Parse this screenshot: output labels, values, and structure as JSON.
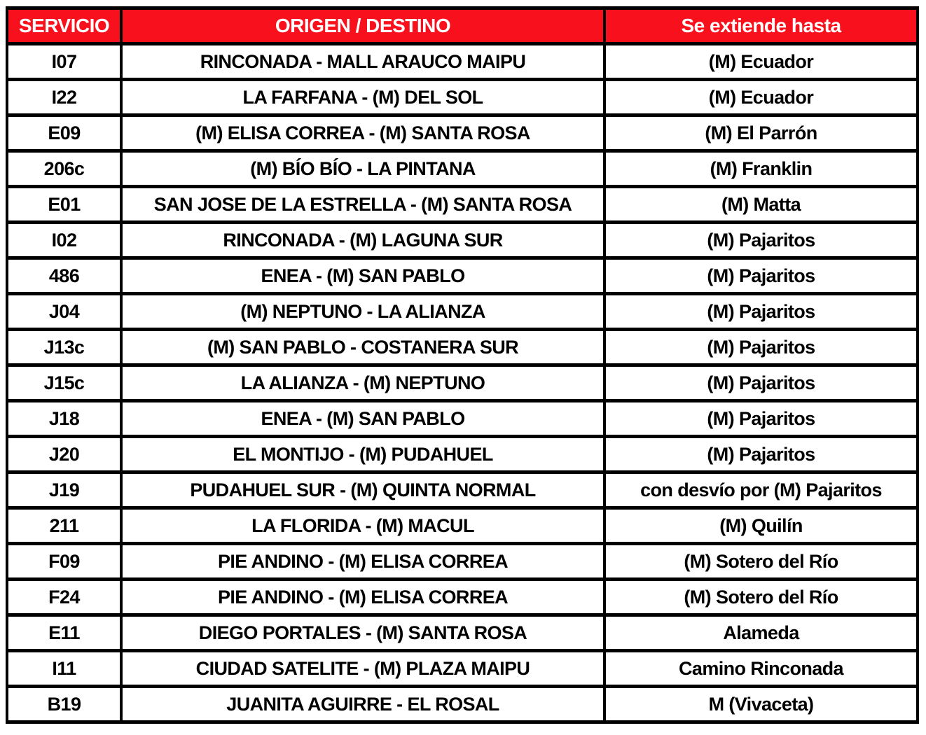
{
  "table": {
    "title": "servicios-se-extienden",
    "columns": [
      {
        "key": "servicio",
        "label": "SERVICIO"
      },
      {
        "key": "origen_destino",
        "label": "ORIGEN / DESTINO"
      },
      {
        "key": "se_extiende_hasta",
        "label": "Se extiende hasta"
      }
    ],
    "rows": [
      {
        "servicio": "I07",
        "origen_destino": "RINCONADA - MALL ARAUCO MAIPU",
        "se_extiende_hasta": "(M) Ecuador"
      },
      {
        "servicio": "I22",
        "origen_destino": "LA FARFANA - (M) DEL SOL",
        "se_extiende_hasta": "(M) Ecuador"
      },
      {
        "servicio": "E09",
        "origen_destino": "(M) ELISA CORREA - (M) SANTA ROSA",
        "se_extiende_hasta": "(M) El Parrón"
      },
      {
        "servicio": "206c",
        "origen_destino": "(M) BÍO BÍO - LA PINTANA",
        "se_extiende_hasta": "(M) Franklin"
      },
      {
        "servicio": "E01",
        "origen_destino": "SAN JOSE DE LA ESTRELLA - (M) SANTA ROSA",
        "se_extiende_hasta": "(M) Matta"
      },
      {
        "servicio": "I02",
        "origen_destino": "RINCONADA - (M) LAGUNA SUR",
        "se_extiende_hasta": "(M) Pajaritos"
      },
      {
        "servicio": "486",
        "origen_destino": "ENEA - (M) SAN PABLO",
        "se_extiende_hasta": "(M) Pajaritos"
      },
      {
        "servicio": "J04",
        "origen_destino": "(M) NEPTUNO - LA ALIANZA",
        "se_extiende_hasta": "(M) Pajaritos"
      },
      {
        "servicio": "J13c",
        "origen_destino": "(M) SAN PABLO - COSTANERA SUR",
        "se_extiende_hasta": "(M) Pajaritos"
      },
      {
        "servicio": "J15c",
        "origen_destino": "LA ALIANZA - (M) NEPTUNO",
        "se_extiende_hasta": "(M) Pajaritos"
      },
      {
        "servicio": "J18",
        "origen_destino": "ENEA - (M) SAN PABLO",
        "se_extiende_hasta": "(M) Pajaritos"
      },
      {
        "servicio": "J20",
        "origen_destino": "EL MONTIJO - (M) PUDAHUEL",
        "se_extiende_hasta": "(M) Pajaritos"
      },
      {
        "servicio": "J19",
        "origen_destino": "PUDAHUEL SUR - (M) QUINTA NORMAL",
        "se_extiende_hasta": "con desvío por (M) Pajaritos"
      },
      {
        "servicio": "211",
        "origen_destino": "LA FLORIDA - (M) MACUL",
        "se_extiende_hasta": "(M) Quilín"
      },
      {
        "servicio": "F09",
        "origen_destino": "PIE ANDINO - (M) ELISA CORREA",
        "se_extiende_hasta": "(M) Sotero del Río"
      },
      {
        "servicio": "F24",
        "origen_destino": "PIE ANDINO - (M) ELISA CORREA",
        "se_extiende_hasta": "(M) Sotero del Río"
      },
      {
        "servicio": "E11",
        "origen_destino": "DIEGO PORTALES - (M) SANTA ROSA",
        "se_extiende_hasta": "Alameda"
      },
      {
        "servicio": "I11",
        "origen_destino": "CIUDAD SATELITE - (M) PLAZA MAIPU",
        "se_extiende_hasta": "Camino Rinconada"
      },
      {
        "servicio": "B19",
        "origen_destino": "JUANITA AGUIRRE - EL ROSAL",
        "se_extiende_hasta": "M (Vivaceta)"
      }
    ],
    "colors": {
      "header_bg": "#f8101c",
      "header_text": "#ffffff",
      "body_bg": "#ffffff",
      "body_text": "#000000",
      "border": "#000000"
    }
  }
}
